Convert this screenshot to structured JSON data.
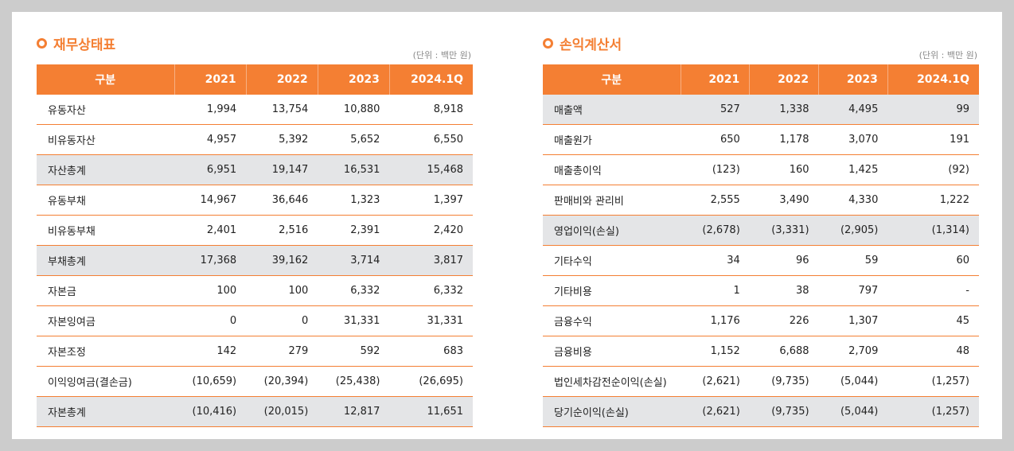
{
  "colors": {
    "accent": "#f47f33",
    "highlight_row": "#e4e5e7"
  },
  "balance_sheet": {
    "title": "재무상태표",
    "unit": "(단위 : 백만 원)",
    "headers": [
      "구분",
      "2021",
      "2022",
      "2023",
      "2024.1Q"
    ],
    "rows": [
      {
        "label": "유동자산",
        "values": [
          "1,994",
          "13,754",
          "10,880",
          "8,918"
        ],
        "highlight": false
      },
      {
        "label": "비유동자산",
        "values": [
          "4,957",
          "5,392",
          "5,652",
          "6,550"
        ],
        "highlight": false
      },
      {
        "label": "자산총계",
        "values": [
          "6,951",
          "19,147",
          "16,531",
          "15,468"
        ],
        "highlight": true
      },
      {
        "label": "유동부채",
        "values": [
          "14,967",
          "36,646",
          "1,323",
          "1,397"
        ],
        "highlight": false
      },
      {
        "label": "비유동부채",
        "values": [
          "2,401",
          "2,516",
          "2,391",
          "2,420"
        ],
        "highlight": false
      },
      {
        "label": "부채총계",
        "values": [
          "17,368",
          "39,162",
          "3,714",
          "3,817"
        ],
        "highlight": true
      },
      {
        "label": "자본금",
        "values": [
          "100",
          "100",
          "6,332",
          "6,332"
        ],
        "highlight": false
      },
      {
        "label": "자본잉여금",
        "values": [
          "0",
          "0",
          "31,331",
          "31,331"
        ],
        "highlight": false
      },
      {
        "label": "자본조정",
        "values": [
          "142",
          "279",
          "592",
          "683"
        ],
        "highlight": false
      },
      {
        "label": "이익잉여금(결손금)",
        "values": [
          "(10,659)",
          "(20,394)",
          "(25,438)",
          "(26,695)"
        ],
        "highlight": false
      },
      {
        "label": "자본총계",
        "values": [
          "(10,416)",
          "(20,015)",
          "12,817",
          "11,651"
        ],
        "highlight": true
      }
    ]
  },
  "income_statement": {
    "title": "손익계산서",
    "unit": "(단위 : 백만 원)",
    "headers": [
      "구분",
      "2021",
      "2022",
      "2023",
      "2024.1Q"
    ],
    "rows": [
      {
        "label": "매출액",
        "values": [
          "527",
          "1,338",
          "4,495",
          "99"
        ],
        "highlight": true
      },
      {
        "label": "매출원가",
        "values": [
          "650",
          "1,178",
          "3,070",
          "191"
        ],
        "highlight": false
      },
      {
        "label": "매출총이익",
        "values": [
          "(123)",
          "160",
          "1,425",
          "(92)"
        ],
        "highlight": false
      },
      {
        "label": "판매비와 관리비",
        "values": [
          "2,555",
          "3,490",
          "4,330",
          "1,222"
        ],
        "highlight": false
      },
      {
        "label": "영업이익(손실)",
        "values": [
          "(2,678)",
          "(3,331)",
          "(2,905)",
          "(1,314)"
        ],
        "highlight": true
      },
      {
        "label": "기타수익",
        "values": [
          "34",
          "96",
          "59",
          "60"
        ],
        "highlight": false
      },
      {
        "label": "기타비용",
        "values": [
          "1",
          "38",
          "797",
          "-"
        ],
        "highlight": false
      },
      {
        "label": "금융수익",
        "values": [
          "1,176",
          "226",
          "1,307",
          "45"
        ],
        "highlight": false
      },
      {
        "label": "금융비용",
        "values": [
          "1,152",
          "6,688",
          "2,709",
          "48"
        ],
        "highlight": false
      },
      {
        "label": "법인세차감전순이익(손실)",
        "values": [
          "(2,621)",
          "(9,735)",
          "(5,044)",
          "(1,257)"
        ],
        "highlight": false
      },
      {
        "label": "당기순이익(손실)",
        "values": [
          "(2,621)",
          "(9,735)",
          "(5,044)",
          "(1,257)"
        ],
        "highlight": true
      }
    ]
  }
}
